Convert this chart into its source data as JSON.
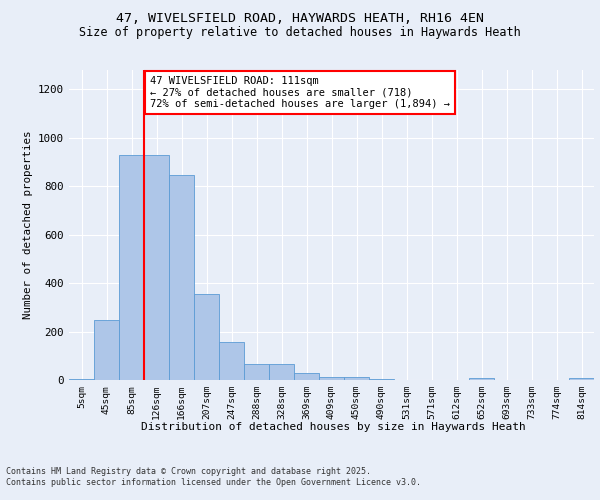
{
  "title1": "47, WIVELSFIELD ROAD, HAYWARDS HEATH, RH16 4EN",
  "title2": "Size of property relative to detached houses in Haywards Heath",
  "xlabel": "Distribution of detached houses by size in Haywards Heath",
  "ylabel": "Number of detached properties",
  "categories": [
    "5sqm",
    "45sqm",
    "85sqm",
    "126sqm",
    "166sqm",
    "207sqm",
    "247sqm",
    "288sqm",
    "328sqm",
    "369sqm",
    "409sqm",
    "450sqm",
    "490sqm",
    "531sqm",
    "571sqm",
    "612sqm",
    "652sqm",
    "693sqm",
    "733sqm",
    "774sqm",
    "814sqm"
  ],
  "bar_values": [
    5,
    248,
    930,
    930,
    845,
    357,
    157,
    65,
    65,
    28,
    12,
    12,
    5,
    0,
    0,
    0,
    8,
    0,
    0,
    0,
    8
  ],
  "bar_color": "#aec6e8",
  "bar_edge_color": "#5b9bd5",
  "vline_x_index": 3,
  "vline_color": "red",
  "annotation_text": "47 WIVELSFIELD ROAD: 111sqm\n← 27% of detached houses are smaller (718)\n72% of semi-detached houses are larger (1,894) →",
  "annotation_box_color": "white",
  "annotation_box_edge_color": "red",
  "ylim": [
    0,
    1280
  ],
  "yticks": [
    0,
    200,
    400,
    600,
    800,
    1000,
    1200
  ],
  "footer_text": "Contains HM Land Registry data © Crown copyright and database right 2025.\nContains public sector information licensed under the Open Government Licence v3.0.",
  "background_color": "#e8eef8",
  "plot_bg_color": "#e8eef8"
}
